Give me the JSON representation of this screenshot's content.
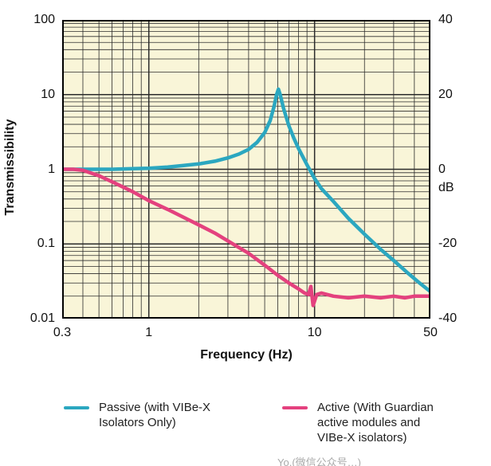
{
  "chart_data": {
    "type": "line",
    "title": "",
    "xlabel": "Frequency (Hz)",
    "ylabel": "Transmissibility",
    "right_axis_unit": "dB",
    "xscale": "log",
    "yscale": "log",
    "xlim": [
      0.3,
      50
    ],
    "ylim": [
      0.01,
      100
    ],
    "right_axis_db_range": [
      -40,
      40
    ],
    "grid": "on",
    "plot_bg": "#f9f5d8",
    "grid_color": "#2b2b2b",
    "xticks": [
      [
        0.3,
        "0.3"
      ],
      [
        1,
        "1"
      ],
      [
        10,
        "10"
      ],
      [
        50,
        "50"
      ]
    ],
    "yticks_left": [
      [
        100,
        "100"
      ],
      [
        10,
        "10"
      ],
      [
        1,
        "1"
      ],
      [
        0.1,
        "0.1"
      ],
      [
        0.01,
        "0.01"
      ]
    ],
    "yticks_right": [
      [
        100,
        "40"
      ],
      [
        10,
        "20"
      ],
      [
        1,
        "0"
      ],
      [
        0.1,
        "-20"
      ],
      [
        0.01,
        "-40"
      ]
    ],
    "legend_position": "bottom",
    "series": [
      {
        "name": "Passive (with VIBe-X Isolators Only)",
        "color": "#2ba7c0",
        "points": [
          [
            0.3,
            1.0
          ],
          [
            0.4,
            1.0
          ],
          [
            0.6,
            1.0
          ],
          [
            0.8,
            1.02
          ],
          [
            1,
            1.03
          ],
          [
            1.3,
            1.07
          ],
          [
            1.6,
            1.12
          ],
          [
            2,
            1.18
          ],
          [
            2.5,
            1.28
          ],
          [
            3,
            1.42
          ],
          [
            3.5,
            1.6
          ],
          [
            4,
            1.85
          ],
          [
            4.5,
            2.3
          ],
          [
            5,
            3.1
          ],
          [
            5.4,
            4.5
          ],
          [
            5.7,
            7.0
          ],
          [
            5.9,
            10.0
          ],
          [
            6.05,
            11.8
          ],
          [
            6.2,
            10.0
          ],
          [
            6.5,
            6.5
          ],
          [
            7,
            3.8
          ],
          [
            7.5,
            2.6
          ],
          [
            8,
            1.9
          ],
          [
            9,
            1.15
          ],
          [
            10,
            0.75
          ],
          [
            11,
            0.55
          ],
          [
            13,
            0.37
          ],
          [
            16,
            0.22
          ],
          [
            20,
            0.135
          ],
          [
            25,
            0.085
          ],
          [
            30,
            0.06
          ],
          [
            36,
            0.042
          ],
          [
            43,
            0.03
          ],
          [
            50,
            0.023
          ]
        ]
      },
      {
        "name": "Active (With Guardian active modules and VIBe-X isolators)",
        "color": "#e4417e",
        "points": [
          [
            0.3,
            1.0
          ],
          [
            0.35,
            1.0
          ],
          [
            0.4,
            0.97
          ],
          [
            0.5,
            0.82
          ],
          [
            0.6,
            0.68
          ],
          [
            0.8,
            0.5
          ],
          [
            1,
            0.38
          ],
          [
            1.3,
            0.29
          ],
          [
            1.6,
            0.23
          ],
          [
            2,
            0.18
          ],
          [
            2.5,
            0.14
          ],
          [
            3,
            0.11
          ],
          [
            4,
            0.075
          ],
          [
            5,
            0.052
          ],
          [
            6,
            0.038
          ],
          [
            7,
            0.03
          ],
          [
            8,
            0.025
          ],
          [
            8.7,
            0.022
          ],
          [
            9.2,
            0.021
          ],
          [
            9.5,
            0.027
          ],
          [
            9.8,
            0.015
          ],
          [
            10.3,
            0.021
          ],
          [
            11,
            0.022
          ],
          [
            13,
            0.02
          ],
          [
            16,
            0.019
          ],
          [
            20,
            0.02
          ],
          [
            25,
            0.019
          ],
          [
            30,
            0.02
          ],
          [
            35,
            0.019
          ],
          [
            40,
            0.02
          ],
          [
            50,
            0.02
          ]
        ]
      }
    ]
  },
  "watermark": "Yo.(微信公众号…)"
}
